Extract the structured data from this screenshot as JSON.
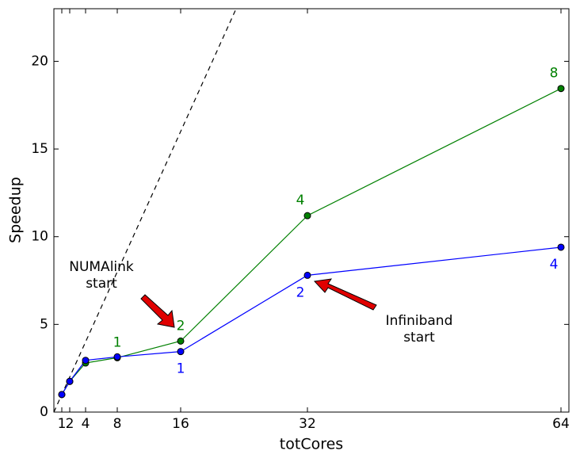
{
  "chart_data": {
    "type": "line",
    "x_label": "totCores",
    "y_label": "Speedup",
    "x": [
      1,
      2,
      4,
      8,
      16,
      32,
      64
    ],
    "series": [
      {
        "color": "#008000",
        "values": [
          1.0,
          1.75,
          2.8,
          3.1,
          4.05,
          11.2,
          18.45
        ],
        "point_labels": [
          null,
          null,
          null,
          1,
          2,
          4,
          8
        ],
        "label_side": "above"
      },
      {
        "color": "#0000ff",
        "values": [
          1.0,
          1.75,
          2.95,
          3.15,
          3.45,
          7.8,
          9.4
        ],
        "point_labels": [
          null,
          null,
          null,
          null,
          1,
          2,
          4
        ],
        "label_side": "below"
      }
    ],
    "reference_line": {
      "x": [
        0,
        23
      ],
      "values": [
        0,
        23
      ],
      "color": "#000000",
      "dashed": true
    },
    "annotations": [
      {
        "lines": [
          "NUMAlink",
          "start"
        ]
      },
      {
        "lines": [
          "Infiniband",
          "start"
        ]
      }
    ],
    "xlim": [
      0,
      65
    ],
    "ylim": [
      0,
      23
    ],
    "xticks": [
      1,
      2,
      4,
      8,
      16,
      32,
      64
    ],
    "yticks": [
      0,
      5,
      10,
      15,
      20
    ],
    "grid": false
  }
}
